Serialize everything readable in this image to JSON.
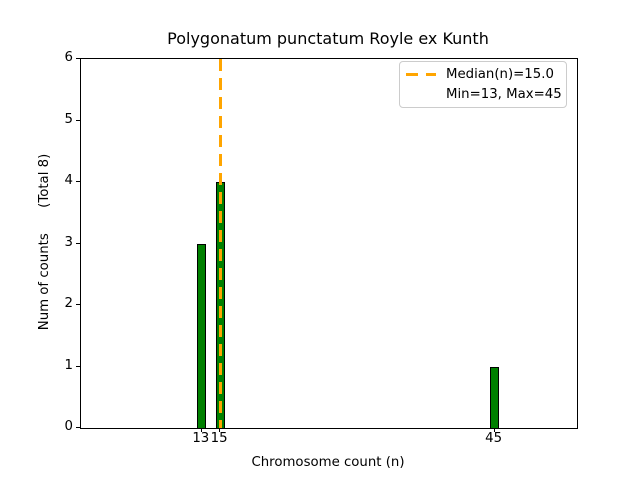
{
  "figure": {
    "title": "Polygonatum punctatum Royle ex Kunth",
    "xlabel": "Chromosome count (n)",
    "ylabel": "Num of counts      (Total 8)",
    "legend": {
      "median_label": "Median(n)=15.0",
      "minmax_label": "Min=13, Max=45"
    },
    "colors": {
      "bar_fill": "#008000",
      "bar_edge": "#000000",
      "median_line": "#FFA500",
      "legend_border": "#cccccc",
      "spine": "#000000",
      "background": "#ffffff"
    }
  },
  "chart_data": {
    "type": "bar",
    "title": "Polygonatum punctatum Royle ex Kunth",
    "xlabel": "Chromosome count (n)",
    "ylabel": "Num of counts (Total 8)",
    "x": [
      13,
      15,
      45
    ],
    "values": [
      3,
      4,
      1
    ],
    "bar_width": 1.0,
    "total": 8,
    "median_n": 15.0,
    "min_n": 13,
    "max_n": 45,
    "xticks": [
      13,
      15,
      45
    ],
    "yticks": [
      0,
      1,
      2,
      3,
      4,
      5,
      6
    ],
    "xlim": [
      -0.2,
      54.0
    ],
    "ylim": [
      0,
      6
    ],
    "grid": false,
    "legend_position": "upper right",
    "annotations": [
      {
        "type": "vline",
        "x": 15.0,
        "style": "dashed",
        "color": "#FFA500"
      }
    ]
  }
}
